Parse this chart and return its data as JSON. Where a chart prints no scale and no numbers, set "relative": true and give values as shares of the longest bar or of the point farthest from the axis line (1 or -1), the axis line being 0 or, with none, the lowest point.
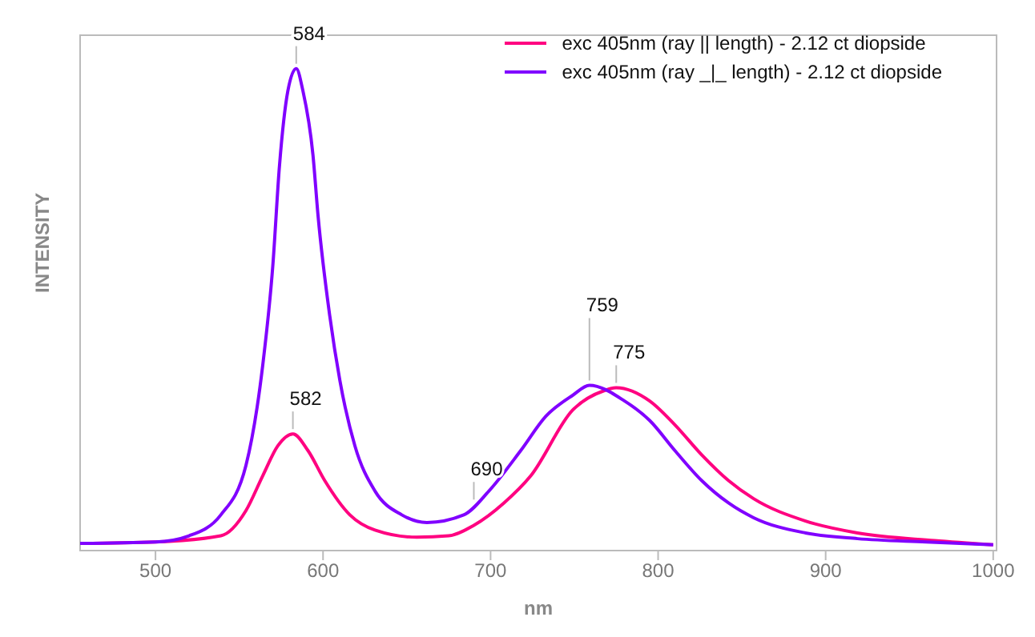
{
  "chart_data": {
    "type": "line",
    "xlabel": "nm",
    "ylabel": "INTENSITY",
    "relative": true,
    "xlim": [
      455,
      1002
    ],
    "xticks": [
      500,
      600,
      700,
      800,
      900,
      1000
    ],
    "grid": false,
    "legend": "top right",
    "marker": "none",
    "line_style": "solid",
    "series": [
      {
        "name": "exc 405nm (ray || length) - 2.12 ct diopside",
        "color": "#ff0080",
        "x": [
          455,
          500,
          539,
          554,
          564,
          573,
          582,
          591,
          601,
          616,
          631,
          656,
          675,
          690,
          708,
          724,
          749,
          768,
          775,
          795,
          810,
          826,
          842,
          857,
          888,
          919,
          965,
          1000
        ],
        "values": [
          0.003,
          0.006,
          0.019,
          0.072,
          0.145,
          0.208,
          0.233,
          0.198,
          0.135,
          0.063,
          0.031,
          0.016,
          0.019,
          0.041,
          0.088,
          0.145,
          0.283,
          0.324,
          0.33,
          0.302,
          0.252,
          0.189,
          0.135,
          0.097,
          0.05,
          0.025,
          0.009,
          0
        ]
      },
      {
        "name": "exc 405nm (ray _|_ length) - 2.12 ct diopside",
        "color": "#8000ff",
        "x": [
          455,
          500,
          520,
          539,
          554,
          564,
          570,
          574,
          579,
          584,
          588,
          594,
          597,
          604,
          610,
          619,
          631,
          647,
          662,
          684,
          699,
          718,
          733,
          749,
          759,
          780,
          795,
          810,
          826,
          842,
          857,
          888,
          919,
          960,
          1000
        ],
        "values": [
          0.003,
          0.006,
          0.019,
          0.063,
          0.167,
          0.377,
          0.585,
          0.796,
          0.953,
          1,
          0.953,
          0.818,
          0.692,
          0.481,
          0.346,
          0.208,
          0.113,
          0.063,
          0.047,
          0.063,
          0.113,
          0.198,
          0.27,
          0.314,
          0.335,
          0.302,
          0.261,
          0.198,
          0.135,
          0.088,
          0.057,
          0.025,
          0.013,
          0.006,
          0
        ]
      }
    ],
    "annotations": [
      {
        "text": "584",
        "x": 584,
        "y": 1
      },
      {
        "text": "582",
        "x": 582,
        "y": 0.233
      },
      {
        "text": "690",
        "x": 690,
        "y": 0.085
      },
      {
        "text": "759",
        "x": 759,
        "y": 0.335
      },
      {
        "text": "775",
        "x": 775,
        "y": 0.33
      }
    ]
  }
}
